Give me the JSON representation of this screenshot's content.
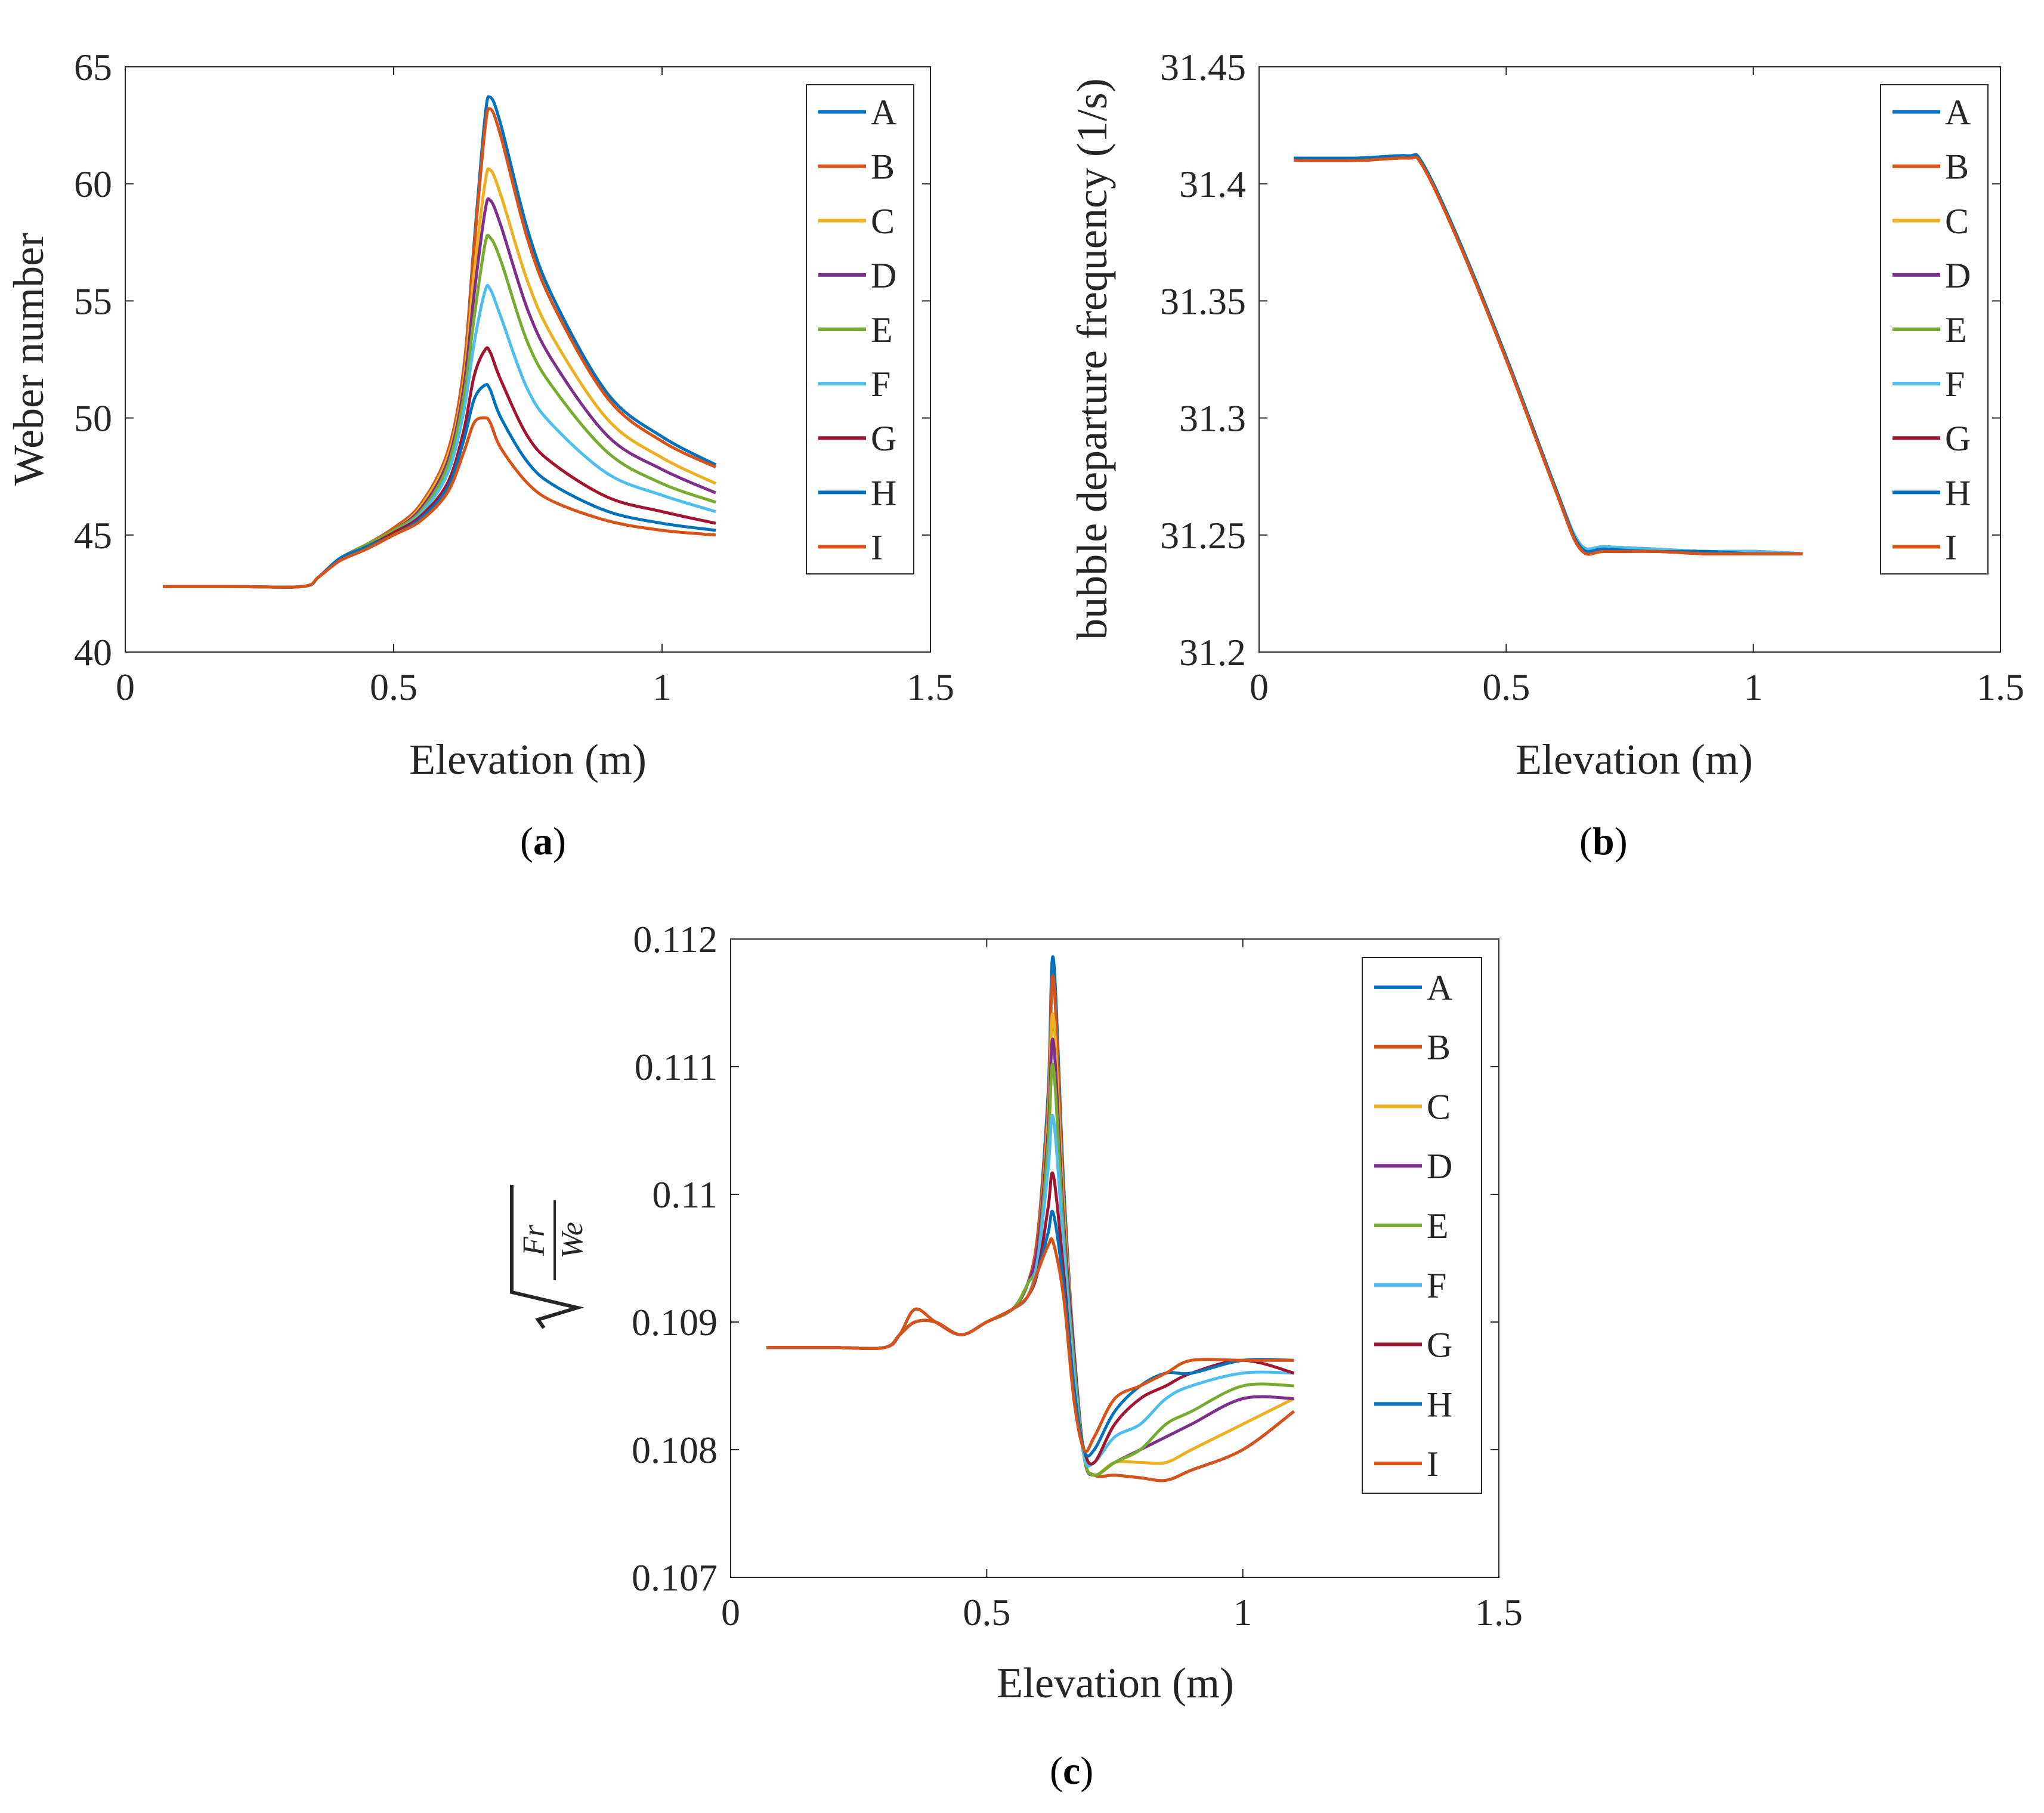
{
  "figure": {
    "series_names": [
      "A",
      "B",
      "C",
      "D",
      "E",
      "F",
      "G",
      "H",
      "I"
    ],
    "series_colors": [
      "#0072BD",
      "#D95319",
      "#EDB120",
      "#7E2F8E",
      "#77AC30",
      "#4DBEEE",
      "#A2142F",
      "#0072BD",
      "#D95319"
    ]
  },
  "chart_data": [
    {
      "id": "a",
      "type": "line",
      "caption_open": "(",
      "caption_letter": "a",
      "caption_close": ")",
      "xlabel": "Elevation (m)",
      "ylabel": "Weber number",
      "xlim": [
        0,
        1.5
      ],
      "ylim": [
        40,
        65
      ],
      "xticks": [
        0,
        0.5,
        1,
        1.5
      ],
      "xtick_labels": [
        "0",
        "0.5",
        "1",
        "1.5"
      ],
      "yticks": [
        40,
        45,
        50,
        55,
        60,
        65
      ],
      "ytick_labels": [
        "40",
        "45",
        "50",
        "55",
        "60",
        "65"
      ],
      "legend_position": "top-right",
      "x": [
        0.07,
        0.2,
        0.33,
        0.36,
        0.4,
        0.45,
        0.5,
        0.55,
        0.6,
        0.63,
        0.65,
        0.67,
        0.68,
        0.7,
        0.75,
        0.8,
        0.9,
        1.0,
        1.1
      ],
      "series": [
        {
          "name": "A",
          "values": [
            42.8,
            42.8,
            42.8,
            43.2,
            44.0,
            44.6,
            45.3,
            46.3,
            48.5,
            52.0,
            57.5,
            62.8,
            63.7,
            62.5,
            58.0,
            55.0,
            51.0,
            49.2,
            48.0
          ]
        },
        {
          "name": "B",
          "values": [
            42.8,
            42.8,
            42.8,
            43.2,
            44.0,
            44.6,
            45.3,
            46.3,
            48.5,
            52.0,
            57.3,
            62.3,
            63.2,
            62.0,
            57.6,
            54.7,
            50.8,
            49.0,
            47.9
          ]
        },
        {
          "name": "C",
          "values": [
            42.8,
            42.8,
            42.8,
            43.2,
            44.0,
            44.6,
            45.2,
            46.2,
            48.3,
            51.5,
            56.2,
            60.0,
            60.6,
            59.5,
            55.8,
            53.3,
            49.9,
            48.3,
            47.2
          ]
        },
        {
          "name": "D",
          "values": [
            42.8,
            42.8,
            42.8,
            43.2,
            44.0,
            44.6,
            45.2,
            46.1,
            48.1,
            51.2,
            55.3,
            58.8,
            59.3,
            58.2,
            54.6,
            52.3,
            49.2,
            47.8,
            46.8
          ]
        },
        {
          "name": "E",
          "values": [
            42.8,
            42.8,
            42.8,
            43.2,
            44.0,
            44.6,
            45.2,
            46.0,
            47.9,
            50.8,
            54.3,
            57.4,
            57.7,
            56.7,
            53.2,
            51.2,
            48.5,
            47.2,
            46.4
          ]
        },
        {
          "name": "F",
          "values": [
            42.8,
            42.8,
            42.8,
            43.2,
            44.0,
            44.5,
            45.1,
            45.9,
            47.6,
            50.2,
            53.2,
            55.4,
            55.5,
            54.3,
            51.2,
            49.6,
            47.6,
            46.7,
            46.0
          ]
        },
        {
          "name": "G",
          "values": [
            42.8,
            42.8,
            42.8,
            43.2,
            44.0,
            44.5,
            45.1,
            45.8,
            47.2,
            49.4,
            51.8,
            52.9,
            52.8,
            51.6,
            49.2,
            48.0,
            46.6,
            46.0,
            45.5
          ]
        },
        {
          "name": "H",
          "values": [
            42.8,
            42.8,
            42.8,
            43.2,
            44.0,
            44.5,
            45.0,
            45.7,
            47.0,
            49.0,
            50.8,
            51.4,
            51.2,
            50.0,
            48.1,
            47.1,
            46.0,
            45.5,
            45.2
          ]
        },
        {
          "name": "I",
          "values": [
            42.8,
            42.8,
            42.8,
            43.2,
            43.9,
            44.4,
            45.0,
            45.6,
            46.8,
            48.5,
            49.8,
            50.0,
            49.8,
            48.7,
            47.2,
            46.4,
            45.6,
            45.2,
            45.0
          ]
        }
      ]
    },
    {
      "id": "b",
      "type": "line",
      "caption_open": "(",
      "caption_letter": "b",
      "caption_close": ")",
      "xlabel": "Elevation (m)",
      "ylabel": "bubble departure frequency (1/s)",
      "xlim": [
        0,
        1.5
      ],
      "ylim": [
        31.2,
        31.45
      ],
      "xticks": [
        0,
        0.5,
        1,
        1.5
      ],
      "xtick_labels": [
        "0",
        "0.5",
        "1",
        "1.5"
      ],
      "yticks": [
        31.2,
        31.25,
        31.3,
        31.35,
        31.4,
        31.45
      ],
      "ytick_labels": [
        "31.2",
        "31.25",
        "31.3",
        "31.35",
        "31.4",
        "31.45"
      ],
      "legend_position": "top-right",
      "x": [
        0.07,
        0.2,
        0.3,
        0.33,
        0.4,
        0.5,
        0.6,
        0.65,
        0.7,
        0.8,
        0.9,
        1.0,
        1.1
      ],
      "series": [
        {
          "name": "A",
          "values": [
            31.411,
            31.411,
            31.412,
            31.409,
            31.378,
            31.326,
            31.27,
            31.246,
            31.244,
            31.243,
            31.243,
            31.242,
            31.242
          ]
        },
        {
          "name": "B",
          "values": [
            31.41,
            31.41,
            31.411,
            31.408,
            31.377,
            31.325,
            31.269,
            31.244,
            31.243,
            31.243,
            31.242,
            31.242,
            31.242
          ]
        },
        {
          "name": "C",
          "values": [
            31.411,
            31.411,
            31.412,
            31.409,
            31.378,
            31.326,
            31.27,
            31.246,
            31.245,
            31.244,
            31.243,
            31.243,
            31.242
          ]
        },
        {
          "name": "D",
          "values": [
            31.411,
            31.411,
            31.412,
            31.409,
            31.378,
            31.326,
            31.27,
            31.246,
            31.245,
            31.244,
            31.243,
            31.243,
            31.242
          ]
        },
        {
          "name": "E",
          "values": [
            31.411,
            31.411,
            31.412,
            31.409,
            31.378,
            31.326,
            31.27,
            31.246,
            31.245,
            31.244,
            31.243,
            31.243,
            31.242
          ]
        },
        {
          "name": "F",
          "values": [
            31.411,
            31.411,
            31.412,
            31.409,
            31.378,
            31.326,
            31.27,
            31.246,
            31.245,
            31.244,
            31.243,
            31.243,
            31.242
          ]
        },
        {
          "name": "G",
          "values": [
            31.41,
            31.41,
            31.411,
            31.408,
            31.377,
            31.325,
            31.269,
            31.244,
            31.243,
            31.243,
            31.242,
            31.242,
            31.242
          ]
        },
        {
          "name": "H",
          "values": [
            31.411,
            31.411,
            31.412,
            31.409,
            31.378,
            31.326,
            31.27,
            31.245,
            31.244,
            31.243,
            31.243,
            31.242,
            31.242
          ]
        },
        {
          "name": "I",
          "values": [
            31.41,
            31.41,
            31.411,
            31.408,
            31.377,
            31.325,
            31.269,
            31.244,
            31.243,
            31.243,
            31.242,
            31.242,
            31.242
          ]
        }
      ]
    },
    {
      "id": "c",
      "type": "line",
      "caption_open": "(",
      "caption_letter": "c",
      "caption_close": ")",
      "xlabel": "Elevation (m)",
      "ylabel_numerator": "Fr",
      "ylabel_denominator": "We",
      "xlim": [
        0,
        1.5
      ],
      "ylim": [
        0.107,
        0.112
      ],
      "xticks": [
        0,
        0.5,
        1,
        1.5
      ],
      "xtick_labels": [
        "0",
        "0.5",
        "1",
        "1.5"
      ],
      "yticks": [
        0.107,
        0.108,
        0.109,
        0.11,
        0.111,
        0.112
      ],
      "ytick_labels": [
        "0.107",
        "0.108",
        "0.109",
        "0.11",
        "0.111",
        "0.112"
      ],
      "legend_position": "top-right",
      "x": [
        0.07,
        0.2,
        0.3,
        0.33,
        0.36,
        0.4,
        0.45,
        0.5,
        0.55,
        0.58,
        0.6,
        0.62,
        0.63,
        0.65,
        0.67,
        0.69,
        0.71,
        0.75,
        0.8,
        0.85,
        0.9,
        1.0,
        1.1
      ],
      "series": [
        {
          "name": "A",
          "values": [
            0.1088,
            0.1088,
            0.1088,
            0.1089,
            0.1091,
            0.109,
            0.1089,
            0.109,
            0.1091,
            0.1093,
            0.1097,
            0.1108,
            0.11185,
            0.1101,
            0.1088,
            0.10795,
            0.1078,
            0.1078,
            0.10778,
            0.10776,
            0.10784,
            0.108,
            0.1083
          ]
        },
        {
          "name": "B",
          "values": [
            0.1088,
            0.1088,
            0.1088,
            0.1089,
            0.1091,
            0.109,
            0.1089,
            0.109,
            0.1091,
            0.1093,
            0.1097,
            0.1107,
            0.1117,
            0.11,
            0.1088,
            0.10795,
            0.1078,
            0.1078,
            0.10778,
            0.10776,
            0.10784,
            0.108,
            0.1083
          ]
        },
        {
          "name": "C",
          "values": [
            0.1088,
            0.1088,
            0.1088,
            0.1089,
            0.109,
            0.109,
            0.1089,
            0.109,
            0.1091,
            0.1093,
            0.1096,
            0.1106,
            0.1114,
            0.1099,
            0.1088,
            0.10795,
            0.1078,
            0.1079,
            0.1079,
            0.1079,
            0.108,
            0.1082,
            0.1084
          ]
        },
        {
          "name": "D",
          "values": [
            0.1088,
            0.1088,
            0.1088,
            0.1089,
            0.109,
            0.109,
            0.1089,
            0.109,
            0.1091,
            0.1093,
            0.1096,
            0.1105,
            0.1112,
            0.1098,
            0.1088,
            0.10795,
            0.1078,
            0.1079,
            0.108,
            0.1081,
            0.1082,
            0.1084,
            0.1084
          ]
        },
        {
          "name": "E",
          "values": [
            0.1088,
            0.1088,
            0.1088,
            0.1089,
            0.109,
            0.109,
            0.1089,
            0.109,
            0.1091,
            0.1093,
            0.1095,
            0.1104,
            0.111,
            0.1097,
            0.1087,
            0.10795,
            0.1078,
            0.1079,
            0.108,
            0.1082,
            0.1083,
            0.1085,
            0.1085
          ]
        },
        {
          "name": "F",
          "values": [
            0.1088,
            0.1088,
            0.1088,
            0.1089,
            0.109,
            0.109,
            0.1089,
            0.109,
            0.1091,
            0.1092,
            0.1095,
            0.1102,
            0.1106,
            0.1096,
            0.1086,
            0.10795,
            0.1079,
            0.1081,
            0.1082,
            0.1084,
            0.1085,
            0.1086,
            0.1086
          ]
        },
        {
          "name": "G",
          "values": [
            0.1088,
            0.1088,
            0.1088,
            0.1089,
            0.109,
            0.109,
            0.1089,
            0.109,
            0.1091,
            0.1092,
            0.1094,
            0.1099,
            0.11015,
            0.1094,
            0.1085,
            0.108,
            0.1079,
            0.1082,
            0.1084,
            0.1085,
            0.1086,
            0.1087,
            0.1086
          ]
        },
        {
          "name": "H",
          "values": [
            0.1088,
            0.1088,
            0.1088,
            0.1089,
            0.109,
            0.109,
            0.1089,
            0.109,
            0.1091,
            0.1092,
            0.1094,
            0.1097,
            0.10985,
            0.1093,
            0.1085,
            0.108,
            0.108,
            0.1083,
            0.1085,
            0.1086,
            0.1086,
            0.1087,
            0.1087
          ]
        },
        {
          "name": "I",
          "values": [
            0.1088,
            0.1088,
            0.1088,
            0.1089,
            0.109,
            0.109,
            0.1089,
            0.109,
            0.1091,
            0.1092,
            0.1094,
            0.1096,
            0.10962,
            0.1092,
            0.1084,
            0.108,
            0.1081,
            0.1084,
            0.1085,
            0.1086,
            0.1087,
            0.1087,
            0.1087
          ]
        }
      ]
    }
  ]
}
